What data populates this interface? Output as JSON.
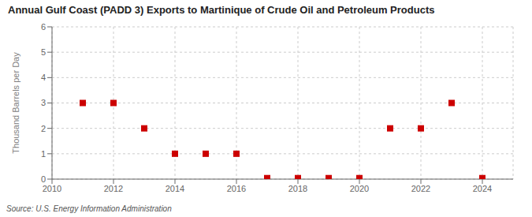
{
  "chart_data": {
    "type": "scatter",
    "title": "Annual Gulf Coast (PADD 3) Exports to Martinique of Crude Oil and Petroleum Products",
    "y_label": "Thousand Barrels per Day",
    "source": "Source: U.S. Energy Information Administration",
    "x": [
      2011,
      2012,
      2013,
      2014,
      2015,
      2016,
      2017,
      2018,
      2019,
      2020,
      2021,
      2022,
      2023,
      2024
    ],
    "values": [
      3.0,
      3.0,
      2.0,
      1.0,
      1.0,
      1.0,
      0.04,
      0.04,
      0.04,
      0.04,
      2.0,
      2.0,
      3.0,
      0.04
    ],
    "color": "#cc0000",
    "marker": "square",
    "xlim": [
      2010,
      2025
    ],
    "ylim": [
      0,
      6
    ],
    "xticks": [
      2010,
      2012,
      2014,
      2016,
      2018,
      2020,
      2022,
      2024
    ],
    "yticks": [
      0,
      1,
      2,
      3,
      4,
      5,
      6
    ],
    "grid": true
  }
}
